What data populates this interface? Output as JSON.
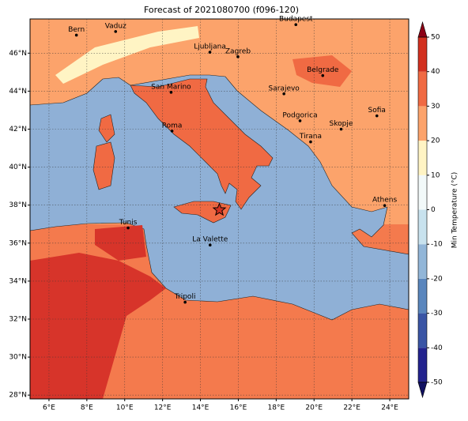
{
  "title": "Forecast of 2021080700 (f096-120)",
  "map": {
    "xlim": [
      5,
      25
    ],
    "ylim": [
      27.8,
      47.8
    ],
    "xticks": [
      {
        "value": 6,
        "label": "6°E"
      },
      {
        "value": 8,
        "label": "8°E"
      },
      {
        "value": 10,
        "label": "10°E"
      },
      {
        "value": 12,
        "label": "12°E"
      },
      {
        "value": 14,
        "label": "14°E"
      },
      {
        "value": 16,
        "label": "16°E"
      },
      {
        "value": 18,
        "label": "18°E"
      },
      {
        "value": 20,
        "label": "20°E"
      },
      {
        "value": 22,
        "label": "22°E"
      },
      {
        "value": 24,
        "label": "24°E"
      }
    ],
    "yticks": [
      {
        "value": 28,
        "label": "28°N"
      },
      {
        "value": 30,
        "label": "30°N"
      },
      {
        "value": 32,
        "label": "32°N"
      },
      {
        "value": 34,
        "label": "34°N"
      },
      {
        "value": 36,
        "label": "36°N"
      },
      {
        "value": 38,
        "label": "38°N"
      },
      {
        "value": 40,
        "label": "40°N"
      },
      {
        "value": 42,
        "label": "42°N"
      },
      {
        "value": 44,
        "label": "44°N"
      },
      {
        "value": 46,
        "label": "46°N"
      }
    ],
    "grid": true,
    "cities": [
      {
        "name": "Bern",
        "lon": 7.45,
        "lat": 46.95
      },
      {
        "name": "Vaduz",
        "lon": 9.52,
        "lat": 47.14
      },
      {
        "name": "Budapest",
        "lon": 19.04,
        "lat": 47.5
      },
      {
        "name": "Ljubljana",
        "lon": 14.5,
        "lat": 46.05
      },
      {
        "name": "Zagreb",
        "lon": 15.98,
        "lat": 45.81
      },
      {
        "name": "Belgrade",
        "lon": 20.46,
        "lat": 44.82
      },
      {
        "name": "San Marino",
        "lon": 12.45,
        "lat": 43.94
      },
      {
        "name": "Sarajevo",
        "lon": 18.41,
        "lat": 43.86
      },
      {
        "name": "Sofia",
        "lon": 23.32,
        "lat": 42.7
      },
      {
        "name": "Roma",
        "lon": 12.5,
        "lat": 41.9
      },
      {
        "name": "Podgorica",
        "lon": 19.26,
        "lat": 42.44
      },
      {
        "name": "Skopje",
        "lon": 21.43,
        "lat": 42.0
      },
      {
        "name": "Tirana",
        "lon": 19.82,
        "lat": 41.33
      },
      {
        "name": "Athens",
        "lon": 23.73,
        "lat": 37.98
      },
      {
        "name": "Tunis",
        "lon": 10.18,
        "lat": 36.8
      },
      {
        "name": "La Valette",
        "lon": 14.51,
        "lat": 35.9
      },
      {
        "name": "Tripoli",
        "lon": 13.19,
        "lat": 32.89
      }
    ],
    "marker": {
      "lon": 15.0,
      "lat": 37.75
    }
  },
  "colorbar": {
    "label": "Min Temperature (°C)",
    "ticks": [
      -50,
      -40,
      -30,
      -20,
      -10,
      0,
      10,
      20,
      30,
      40,
      50
    ],
    "colors": [
      "#23238e",
      "#3a55a5",
      "#5a86bd",
      "#92b6d8",
      "#c8e2ee",
      "#f2f9f9",
      "#fff4c4",
      "#fca36b",
      "#f06a43",
      "#d2301f"
    ],
    "under": "#101060",
    "over": "#8b0016"
  }
}
